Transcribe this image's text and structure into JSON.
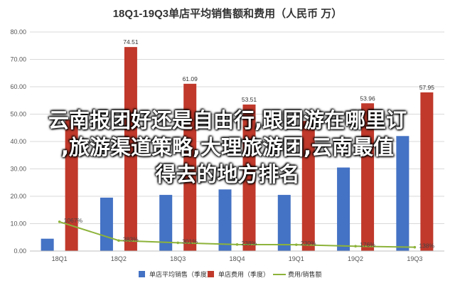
{
  "chart_data": {
    "type": "bar",
    "title": "18Q1-19Q3单店平均销售额和费用（人民币 万）",
    "categories": [
      "18Q1",
      "18Q2",
      "18Q3",
      "18Q4",
      "19Q1",
      "19Q2",
      "19Q3"
    ],
    "series": [
      {
        "name": "单店平均销售（季度）",
        "type": "bar",
        "color": "#4472c4",
        "values": [
          4.5,
          19.5,
          20.5,
          22.5,
          20.5,
          30.5,
          42.0
        ]
      },
      {
        "name": "单店费用（季度）",
        "type": "bar",
        "color": "#c0392b",
        "values": [
          48.0,
          74.51,
          61.09,
          53.51,
          47.5,
          53.96,
          57.95
        ],
        "labels": [
          "",
          "74.51",
          "61.09",
          "53.51",
          "",
          "53.96",
          "57.95"
        ]
      },
      {
        "name": "费用/销售额",
        "type": "line",
        "color": "#8db33a",
        "values": [
          10.67,
          3.83,
          3.01,
          2.38,
          2.3,
          1.76,
          1.38
        ],
        "labels": [
          "1067%",
          "383%",
          "301%",
          "238%",
          "230%",
          "176%",
          "138%"
        ]
      }
    ],
    "yticks": [
      "0.00",
      "10.00",
      "20.00",
      "30.00",
      "40.00",
      "50.00",
      "60.00",
      "70.00",
      "80.00"
    ],
    "ylim": [
      0,
      80
    ],
    "legend_position": "bottom"
  },
  "overlay": {
    "lines": [
      "云南报团好还是自由行,跟团游在哪里订",
      ",旅游渠道策略,大理旅游团,云南最值",
      "得去的地方排名"
    ]
  }
}
